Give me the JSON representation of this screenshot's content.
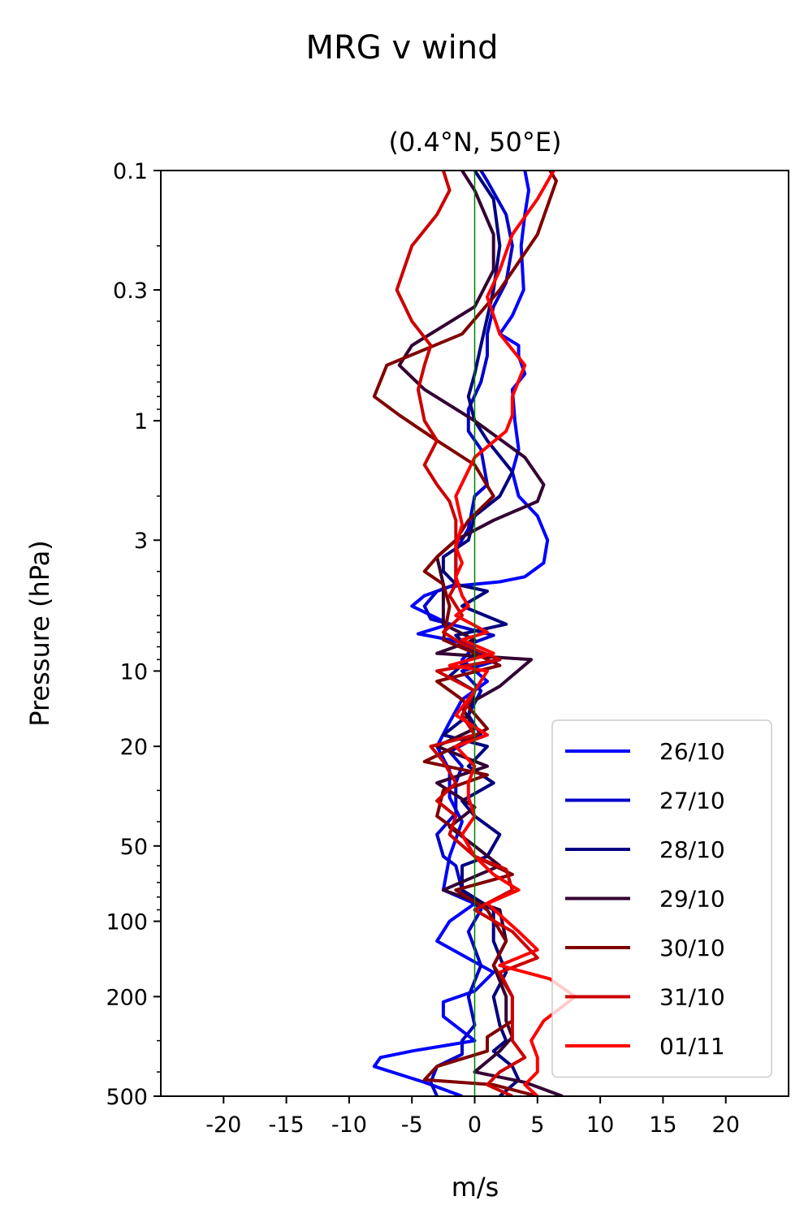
{
  "chart_data": {
    "type": "line",
    "suptitle": "MRG v wind",
    "title": "(0.4°N, 50°E)",
    "xlabel": "m/s",
    "ylabel": "Pressure (hPa)",
    "xlim": [
      -25,
      25
    ],
    "ylim": [
      500,
      0.1
    ],
    "yscale": "log",
    "grid": false,
    "legend_position": "lower-right",
    "xticks": [
      -20,
      -15,
      -10,
      -5,
      0,
      5,
      10,
      15,
      20
    ],
    "xtick_labels": [
      "-20",
      "-15",
      "-10",
      "-5",
      "0",
      "5",
      "10",
      "15",
      "20"
    ],
    "yticks": [
      0.1,
      0.3,
      1,
      3,
      10,
      20,
      50,
      100,
      200,
      500
    ],
    "ytick_labels": [
      "0.1",
      "0.3",
      "1",
      "3",
      "10",
      "20",
      "50",
      "100",
      "200",
      "500"
    ],
    "zero_line_color": "#008000",
    "series": [
      {
        "name": "26/10",
        "color": "#0000ff",
        "points": [
          [
            -1.0,
            500
          ],
          [
            -4,
            440
          ],
          [
            -8,
            380
          ],
          [
            -7.5,
            350
          ],
          [
            -5,
            330
          ],
          [
            0,
            300
          ],
          [
            -2.5,
            240
          ],
          [
            -2.5,
            210
          ],
          [
            0,
            190
          ],
          [
            1.5,
            160
          ],
          [
            -3,
            120
          ],
          [
            -2,
            100
          ],
          [
            0,
            85
          ],
          [
            -2.5,
            75
          ],
          [
            -2,
            55
          ],
          [
            -1,
            40
          ],
          [
            -2,
            32
          ],
          [
            -2,
            25
          ],
          [
            -3,
            20
          ],
          [
            -2,
            16
          ],
          [
            -1,
            13
          ],
          [
            1,
            11
          ],
          [
            -1,
            9
          ],
          [
            0,
            8
          ],
          [
            -2,
            7.5
          ],
          [
            -4.5,
            7.1
          ],
          [
            -2,
            6.5
          ],
          [
            -5,
            5.5
          ],
          [
            -4,
            5
          ],
          [
            -2,
            4.6
          ],
          [
            2,
            4.4
          ],
          [
            4,
            4.2
          ],
          [
            5.5,
            3.7
          ],
          [
            5.8,
            3.0
          ],
          [
            5,
            2.4
          ],
          [
            3.5,
            2.0
          ],
          [
            3,
            1.6
          ],
          [
            3.5,
            1.3
          ],
          [
            3.2,
            1.0
          ],
          [
            3,
            0.75
          ],
          [
            4,
            0.65
          ],
          [
            3.5,
            0.55
          ],
          [
            3.5,
            0.5
          ],
          [
            2,
            0.45
          ],
          [
            3,
            0.38
          ],
          [
            3.9,
            0.3
          ],
          [
            3.7,
            0.2
          ],
          [
            4,
            0.15
          ],
          [
            4.3,
            0.12
          ],
          [
            4,
            0.1
          ]
        ]
      },
      {
        "name": "27/10",
        "color": "#0000cc",
        "points": [
          [
            -3,
            500
          ],
          [
            -3.5,
            440
          ],
          [
            -3,
            380
          ],
          [
            -1,
            340
          ],
          [
            -1,
            300
          ],
          [
            0,
            260
          ],
          [
            -0.5,
            200
          ],
          [
            0.5,
            150
          ],
          [
            -0.5,
            110
          ],
          [
            0.5,
            90
          ],
          [
            -1,
            75
          ],
          [
            -1.5,
            60
          ],
          [
            -2.5,
            55
          ],
          [
            -3,
            45
          ],
          [
            -1.5,
            37
          ],
          [
            -1.5,
            28
          ],
          [
            -1,
            24
          ],
          [
            -2,
            21
          ],
          [
            0.5,
            18
          ],
          [
            -0.5,
            15
          ],
          [
            0.5,
            12
          ],
          [
            -1,
            10
          ],
          [
            2,
            9
          ],
          [
            -1,
            8
          ],
          [
            1.5,
            7.2
          ],
          [
            -3.5,
            6.2
          ],
          [
            -4,
            5.5
          ],
          [
            -3,
            4.8
          ],
          [
            -1.5,
            4.5
          ],
          [
            -1.5,
            3.3
          ],
          [
            -0.5,
            2.7
          ],
          [
            0,
            2.0
          ],
          [
            1,
            1.8
          ],
          [
            0.5,
            1.3
          ],
          [
            -0.5,
            1.1
          ],
          [
            -0.5,
            0.9
          ],
          [
            0.5,
            0.7
          ],
          [
            1,
            0.55
          ],
          [
            1,
            0.45
          ],
          [
            1.5,
            0.35
          ],
          [
            2.5,
            0.28
          ],
          [
            3,
            0.2
          ],
          [
            2.5,
            0.15
          ],
          [
            1,
            0.11
          ],
          [
            0.5,
            0.1
          ]
        ]
      },
      {
        "name": "28/10",
        "color": "#000080",
        "points": [
          [
            2,
            500
          ],
          [
            3.5,
            430
          ],
          [
            3,
            380
          ],
          [
            1.5,
            330
          ],
          [
            2.5,
            300
          ],
          [
            2,
            260
          ],
          [
            1.5,
            200
          ],
          [
            2.5,
            160
          ],
          [
            1.5,
            120
          ],
          [
            1.5,
            90
          ],
          [
            -1,
            75
          ],
          [
            -1,
            60
          ],
          [
            1,
            55
          ],
          [
            2,
            45
          ],
          [
            0,
            38
          ],
          [
            -1,
            33
          ],
          [
            1.5,
            28
          ],
          [
            -0.5,
            24
          ],
          [
            1,
            20
          ],
          [
            -2.5,
            18
          ],
          [
            -0.5,
            15
          ],
          [
            0,
            12
          ],
          [
            -2,
            10.5
          ],
          [
            0,
            8.5
          ],
          [
            -1.5,
            7.2
          ],
          [
            2.5,
            6.5
          ],
          [
            -1,
            5.5
          ],
          [
            1,
            4.8
          ],
          [
            -1.5,
            4.5
          ],
          [
            -2.5,
            4
          ],
          [
            -2.5,
            3.5
          ],
          [
            -0.5,
            3
          ],
          [
            0,
            2.4
          ],
          [
            2,
            2.0
          ],
          [
            3,
            1.6
          ],
          [
            1,
            1.2
          ],
          [
            0,
            1.0
          ],
          [
            -0.5,
            0.8
          ],
          [
            0,
            0.65
          ],
          [
            0.5,
            0.5
          ],
          [
            1.5,
            0.3
          ],
          [
            2,
            0.2
          ],
          [
            1.5,
            0.13
          ],
          [
            0,
            0.1
          ]
        ]
      },
      {
        "name": "29/10",
        "color": "#330033",
        "points": [
          [
            7,
            500
          ],
          [
            4,
            440
          ],
          [
            0,
            400
          ],
          [
            2,
            330
          ],
          [
            3,
            290
          ],
          [
            2.5,
            250
          ],
          [
            2.5,
            200
          ],
          [
            1.5,
            150
          ],
          [
            2.5,
            120
          ],
          [
            2,
            90
          ],
          [
            -2.5,
            75
          ],
          [
            2,
            60
          ],
          [
            0,
            50
          ],
          [
            -2,
            42
          ],
          [
            0,
            35
          ],
          [
            -3,
            28
          ],
          [
            1,
            24
          ],
          [
            -3,
            20
          ],
          [
            0,
            17
          ],
          [
            -1,
            14
          ],
          [
            2,
            11.5
          ],
          [
            4.5,
            9
          ],
          [
            -3,
            8.5
          ],
          [
            0,
            7.5
          ],
          [
            -2.5,
            6.5
          ],
          [
            -2.5,
            5.5
          ],
          [
            -2.5,
            4.5
          ],
          [
            -3,
            3.5
          ],
          [
            -1.5,
            3
          ],
          [
            1.5,
            2.5
          ],
          [
            5,
            2.1
          ],
          [
            5.5,
            1.8
          ],
          [
            4,
            1.4
          ],
          [
            0,
            1.0
          ],
          [
            -4,
            0.75
          ],
          [
            -6,
            0.6
          ],
          [
            -5,
            0.5
          ],
          [
            0,
            0.35
          ],
          [
            1.5,
            0.25
          ],
          [
            1.5,
            0.18
          ],
          [
            0,
            0.12
          ],
          [
            -1,
            0.1
          ]
        ]
      },
      {
        "name": "30/10",
        "color": "#800000",
        "points": [
          [
            5,
            500
          ],
          [
            1.5,
            450
          ],
          [
            -4,
            430
          ],
          [
            -3,
            380
          ],
          [
            1,
            330
          ],
          [
            1,
            290
          ],
          [
            3,
            250
          ],
          [
            3,
            200
          ],
          [
            1.5,
            150
          ],
          [
            2.5,
            120
          ],
          [
            1,
            90
          ],
          [
            -1.5,
            75
          ],
          [
            3,
            65
          ],
          [
            0,
            55
          ],
          [
            -1,
            45
          ],
          [
            -3,
            38
          ],
          [
            -2.5,
            30
          ],
          [
            1,
            26
          ],
          [
            -4,
            23
          ],
          [
            -1.5,
            20
          ],
          [
            1,
            17
          ],
          [
            -1,
            13
          ],
          [
            -3,
            11
          ],
          [
            2,
            9.5
          ],
          [
            0,
            8.5
          ],
          [
            -2.5,
            7.5
          ],
          [
            -2,
            5.5
          ],
          [
            -2.5,
            4.5
          ],
          [
            -4,
            4
          ],
          [
            -3,
            3.5
          ],
          [
            -1.5,
            3.0
          ],
          [
            -0.5,
            2.5
          ],
          [
            1.5,
            2.0
          ],
          [
            0,
            1.5
          ],
          [
            -3,
            1.2
          ],
          [
            -6,
            0.95
          ],
          [
            -8,
            0.8
          ],
          [
            -7,
            0.6
          ],
          [
            -1,
            0.45
          ],
          [
            2,
            0.3
          ],
          [
            5,
            0.18
          ],
          [
            6.5,
            0.11
          ],
          [
            6,
            0.1
          ]
        ]
      },
      {
        "name": "31/10",
        "color": "#cc0000",
        "points": [
          [
            3,
            500
          ],
          [
            1,
            450
          ],
          [
            2,
            400
          ],
          [
            4,
            350
          ],
          [
            3,
            300
          ],
          [
            3,
            250
          ],
          [
            3,
            200
          ],
          [
            2,
            160
          ],
          [
            5,
            140
          ],
          [
            3,
            110
          ],
          [
            0,
            90
          ],
          [
            3,
            75
          ],
          [
            2.5,
            62
          ],
          [
            0,
            55
          ],
          [
            -2,
            45
          ],
          [
            -1.5,
            38
          ],
          [
            -3,
            33
          ],
          [
            -1.5,
            28
          ],
          [
            -2.5,
            23
          ],
          [
            -3.5,
            20
          ],
          [
            0,
            18
          ],
          [
            -1,
            15
          ],
          [
            0,
            12
          ],
          [
            -3,
            10
          ],
          [
            2,
            9
          ],
          [
            -1,
            7.8
          ],
          [
            -2.5,
            7
          ],
          [
            -1,
            6
          ],
          [
            -2,
            5
          ],
          [
            -1.5,
            4.5
          ],
          [
            -1.5,
            3.5
          ],
          [
            -1.5,
            2.5
          ],
          [
            -2,
            2.1
          ],
          [
            -3,
            1.8
          ],
          [
            -4,
            1.5
          ],
          [
            -3,
            1.2
          ],
          [
            -4,
            1.0
          ],
          [
            -4.5,
            0.75
          ],
          [
            -4,
            0.6
          ],
          [
            -3.5,
            0.5
          ],
          [
            -5,
            0.4
          ],
          [
            -6.2,
            0.3
          ],
          [
            -5,
            0.2
          ],
          [
            -3,
            0.15
          ],
          [
            -2,
            0.12
          ],
          [
            -2.5,
            0.1
          ]
        ]
      },
      {
        "name": "01/11",
        "color": "#ff0000",
        "points": [
          [
            5,
            500
          ],
          [
            4,
            450
          ],
          [
            5,
            400
          ],
          [
            5,
            350
          ],
          [
            4.5,
            300
          ],
          [
            5.5,
            250
          ],
          [
            8,
            200
          ],
          [
            6,
            170
          ],
          [
            2,
            150
          ],
          [
            5,
            130
          ],
          [
            3.5,
            110
          ],
          [
            1,
            85
          ],
          [
            3.5,
            75
          ],
          [
            1.5,
            65
          ],
          [
            0,
            55
          ],
          [
            -1,
            45
          ],
          [
            0,
            38
          ],
          [
            -0.5,
            32
          ],
          [
            -0.5,
            28
          ],
          [
            0,
            24
          ],
          [
            -1.5,
            20
          ],
          [
            1,
            18
          ],
          [
            -1.5,
            15
          ],
          [
            0,
            12
          ],
          [
            1,
            10
          ],
          [
            -2,
            9.5
          ],
          [
            1.5,
            8.5
          ],
          [
            -1,
            7.5
          ],
          [
            1,
            7
          ],
          [
            -1.5,
            6
          ],
          [
            -0.5,
            5.5
          ],
          [
            -1,
            5
          ],
          [
            -1.5,
            4.2
          ],
          [
            -1,
            3.7
          ],
          [
            -1.5,
            3.2
          ],
          [
            -1,
            2.6
          ],
          [
            -1.5,
            2.0
          ],
          [
            0,
            1.4
          ],
          [
            2.5,
            1.1
          ],
          [
            3,
            0.95
          ],
          [
            3,
            0.8
          ],
          [
            4,
            0.6
          ],
          [
            2,
            0.45
          ],
          [
            1,
            0.32
          ],
          [
            2,
            0.25
          ],
          [
            3,
            0.18
          ],
          [
            5,
            0.13
          ],
          [
            6.3,
            0.1
          ]
        ]
      }
    ]
  }
}
